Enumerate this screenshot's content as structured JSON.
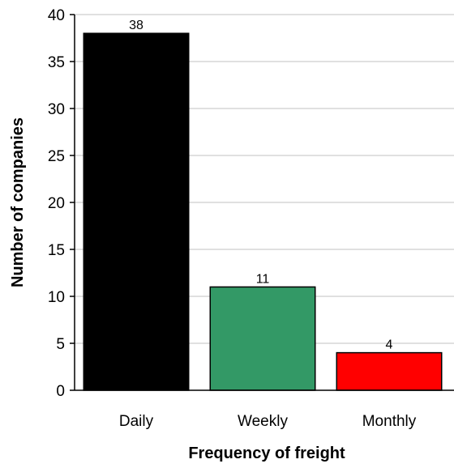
{
  "chart_data": {
    "type": "bar",
    "categories": [
      "Daily",
      "Weekly",
      "Monthly"
    ],
    "values": [
      38,
      11,
      4
    ],
    "data_labels": [
      "38",
      "11",
      "4"
    ],
    "colors": [
      "#000000",
      "#339966",
      "#ff0000"
    ],
    "xlabel": "Frequency of freight",
    "ylabel": "Number of companies",
    "ylim": [
      0,
      40
    ],
    "yticks": [
      0,
      5,
      10,
      15,
      20,
      25,
      30,
      35,
      40
    ],
    "grid": true
  }
}
